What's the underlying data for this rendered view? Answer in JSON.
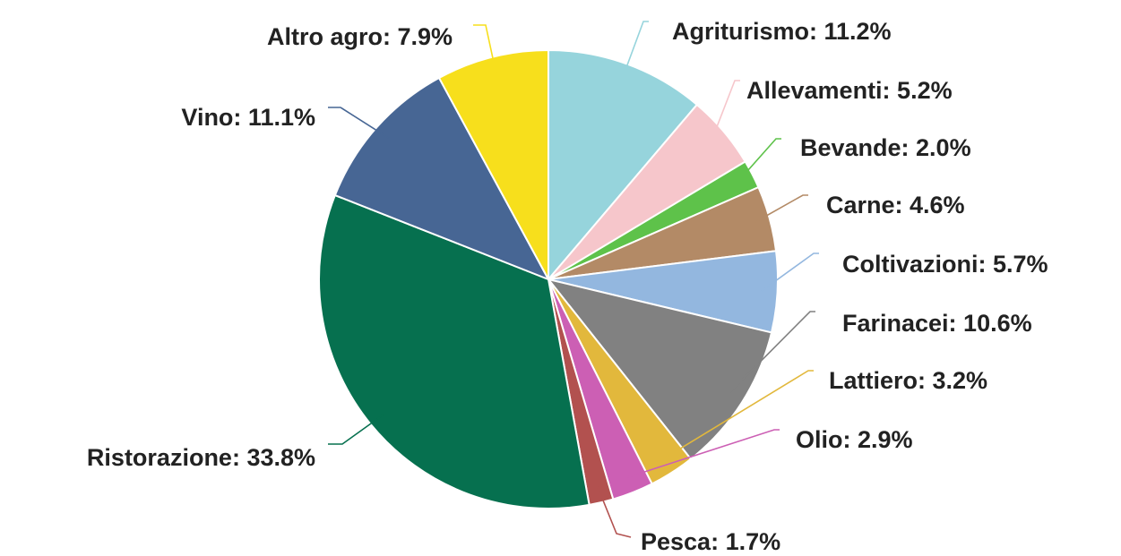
{
  "chart_data": {
    "type": "pie",
    "title": "",
    "slices": [
      {
        "label": "Agriturismo: 11.2%",
        "value": 11.2,
        "color": "#96d4dc"
      },
      {
        "label": "Allevamenti: 5.2%",
        "value": 5.2,
        "color": "#f6c6cb"
      },
      {
        "label": "Bevande: 2.0%",
        "value": 2.0,
        "color": "#5ec24a"
      },
      {
        "label": "Carne: 4.6%",
        "value": 4.6,
        "color": "#b38a66"
      },
      {
        "label": "Coltivazioni: 5.7%",
        "value": 5.7,
        "color": "#93b7df"
      },
      {
        "label": "Farinacei: 10.6%",
        "value": 10.6,
        "color": "#818181"
      },
      {
        "label": "Lattiero: 3.2%",
        "value": 3.2,
        "color": "#e2b83c"
      },
      {
        "label": "Olio: 2.9%",
        "value": 2.9,
        "color": "#cc5fb4"
      },
      {
        "label": "Pesca: 1.7%",
        "value": 1.7,
        "color": "#b2514f"
      },
      {
        "label": "Ristorazione: 33.8%",
        "value": 33.8,
        "color": "#06704f"
      },
      {
        "label": "Vino: 11.1%",
        "value": 11.1,
        "color": "#476694"
      },
      {
        "label": "Altro agro: 7.9%",
        "value": 7.9,
        "color": "#f7df1c"
      }
    ]
  }
}
